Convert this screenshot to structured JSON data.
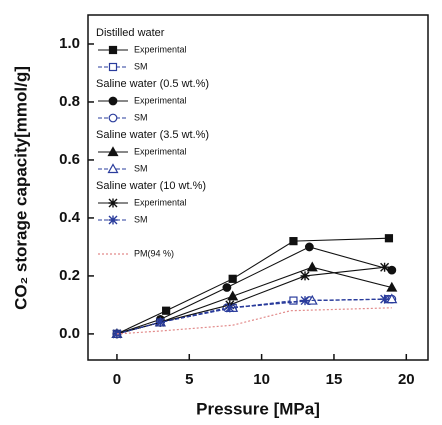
{
  "chart_data": {
    "type": "line",
    "xlabel": "Pressure [MPa]",
    "ylabel": "CO₂ storage capacity[mmol/g]",
    "xlim": [
      -2,
      21.5
    ],
    "ylim": [
      -0.09,
      1.1
    ],
    "xticks": [
      0,
      5,
      10,
      15,
      20
    ],
    "yticks": [
      {
        "value": 0,
        "label": "0.0"
      },
      {
        "value": 0.2,
        "label": "0.2"
      },
      {
        "value": 0.4,
        "label": "0.4"
      },
      {
        "value": 0.6,
        "label": "0.6"
      },
      {
        "value": 0.8,
        "label": "0.8"
      },
      {
        "value": 1.0,
        "label": "1.0"
      }
    ],
    "legend_titles": [
      "Distilled water",
      "Saline water (0.5 wt.%)",
      "Saline water (3.5 wt.%)",
      "Saline water (10 wt.%)"
    ],
    "series": [
      {
        "name": "Experimental",
        "color": "#111111",
        "marker": "square",
        "filled": true,
        "x": [
          0,
          3.4,
          8,
          12.2,
          18.8
        ],
        "values": [
          0,
          0.08,
          0.19,
          0.32,
          0.33
        ]
      },
      {
        "name": "SM",
        "color": "#2a3c9c",
        "marker": "square",
        "filled": false,
        "dash": true,
        "x": [
          0,
          3,
          8,
          12.2,
          18.8
        ],
        "values": [
          0,
          0.04,
          0.09,
          0.115,
          0.12
        ]
      },
      {
        "name": "Experimental",
        "color": "#111111",
        "marker": "circle",
        "filled": true,
        "x": [
          0,
          3,
          7.6,
          13.3,
          19
        ],
        "values": [
          0,
          0.05,
          0.16,
          0.3,
          0.22
        ]
      },
      {
        "name": "SM",
        "color": "#2a3c9c",
        "marker": "circle",
        "filled": false,
        "dash": true,
        "x": [
          0,
          3,
          7.6,
          13.3,
          19
        ],
        "values": [
          0,
          0.04,
          0.09,
          0.115,
          0.12
        ]
      },
      {
        "name": "Experimental",
        "color": "#111111",
        "marker": "triangle",
        "filled": true,
        "x": [
          0,
          3,
          8,
          13.5,
          19
        ],
        "values": [
          0,
          0.04,
          0.13,
          0.23,
          0.16
        ]
      },
      {
        "name": "SM",
        "color": "#2a3c9c",
        "marker": "triangle",
        "filled": false,
        "dash": true,
        "x": [
          0,
          3,
          8,
          13.5,
          19
        ],
        "values": [
          0,
          0.04,
          0.09,
          0.115,
          0.12
        ]
      },
      {
        "name": "Experimental",
        "color": "#111111",
        "marker": "star",
        "filled": true,
        "x": [
          0,
          3,
          7.8,
          13,
          18.5
        ],
        "values": [
          0,
          0.04,
          0.1,
          0.2,
          0.23
        ]
      },
      {
        "name": "SM",
        "color": "#2a3c9c",
        "marker": "star",
        "filled": true,
        "dash": true,
        "x": [
          0,
          3,
          7.8,
          13,
          18.5
        ],
        "values": [
          0,
          0.04,
          0.09,
          0.115,
          0.12
        ]
      },
      {
        "name": "PM(94 %)",
        "color": "#e28a8a",
        "marker": "none",
        "filled": false,
        "dot": true,
        "x": [
          0,
          3,
          8,
          12,
          19
        ],
        "values": [
          0,
          0.01,
          0.03,
          0.08,
          0.09
        ]
      }
    ]
  }
}
